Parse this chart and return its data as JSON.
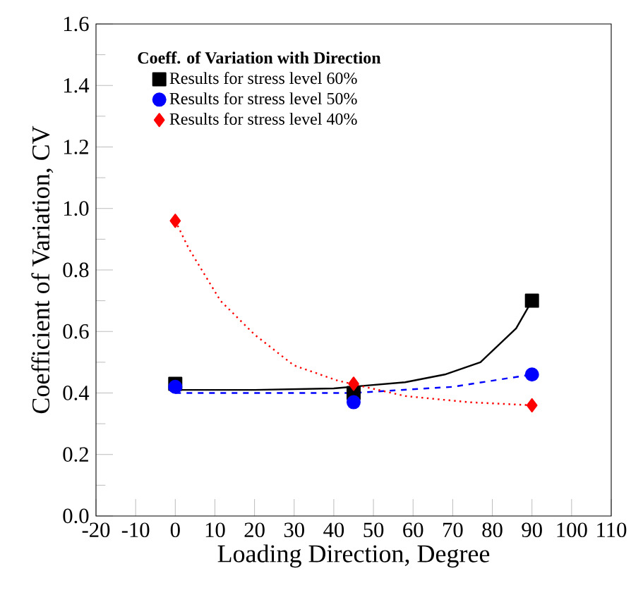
{
  "chart_data": {
    "type": "scatter",
    "xlabel": "Loading Direction, Degree",
    "ylabel": "Coefficient of Variation, CV",
    "legend_title": "Coeff. of Variation with Direction",
    "legend": "top left",
    "grid": false,
    "xlim": [
      -20,
      110
    ],
    "xticks": [
      -20,
      -10,
      0,
      10,
      20,
      30,
      40,
      50,
      60,
      70,
      80,
      90,
      100,
      110
    ],
    "ylim": [
      0,
      1.6
    ],
    "yticks": [
      {
        "value": 0,
        "label": "0.0"
      },
      0.2,
      0.4,
      0.6,
      0.8,
      {
        "value": 1,
        "label": "1.0"
      },
      1.2,
      1.4,
      1.6
    ],
    "series": [
      {
        "name": "Results for stress level 60%",
        "marker": "square",
        "color": "#000000",
        "x": [
          0,
          45,
          90
        ],
        "values": [
          0.43,
          0.4,
          0.7
        ]
      },
      {
        "name": "Results for stress level 50%",
        "marker": "circle",
        "color": "#0000ff",
        "x": [
          0,
          45,
          90
        ],
        "values": [
          0.42,
          0.37,
          0.46
        ]
      },
      {
        "name": "Results for stress level 40%",
        "marker": "diamond",
        "color": "#ff0000",
        "x": [
          0,
          45,
          90
        ],
        "values": [
          0.96,
          0.43,
          0.36
        ]
      },
      {
        "type": "line",
        "line_style": "solid",
        "color": "#000000",
        "x": [
          0,
          20,
          40,
          58,
          68,
          77,
          86,
          90
        ],
        "values": [
          0.41,
          0.41,
          0.415,
          0.435,
          0.46,
          0.5,
          0.61,
          0.7
        ]
      },
      {
        "type": "line",
        "line_style": "dashed",
        "color": "#0000ff",
        "x": [
          0,
          45,
          70,
          90
        ],
        "values": [
          0.4,
          0.4,
          0.42,
          0.46
        ]
      },
      {
        "type": "line",
        "line_style": "dotted",
        "color": "#ff0000",
        "x": [
          0,
          3.4,
          11.4,
          20,
          29.9,
          41,
          58,
          74,
          90
        ],
        "values": [
          0.96,
          0.87,
          0.7,
          0.59,
          0.49,
          0.44,
          0.39,
          0.37,
          0.36
        ]
      }
    ]
  }
}
